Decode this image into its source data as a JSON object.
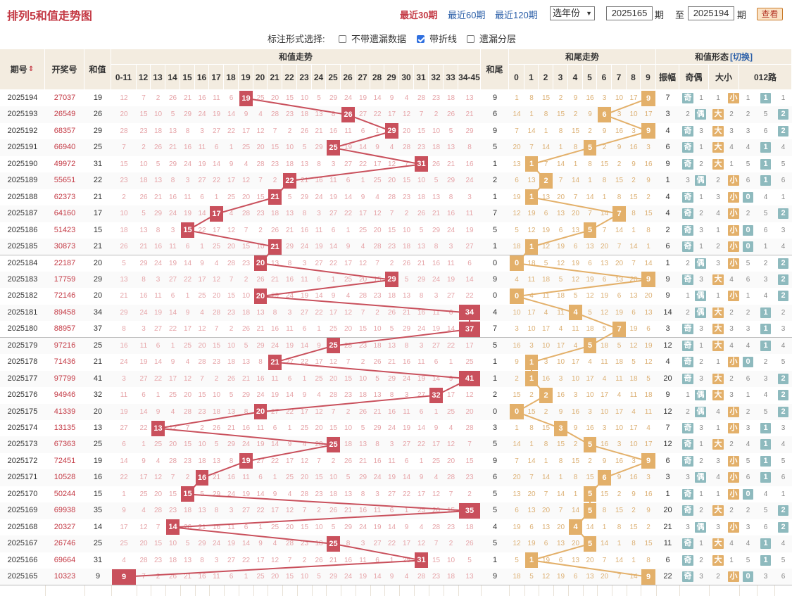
{
  "header": {
    "title": "排列5和值走势图",
    "period_links": [
      "最近30期",
      "最近60期",
      "最近120期"
    ],
    "active_period": "最近30期",
    "year_select": "选年份",
    "from_issue": "2025165",
    "period_unit": "期",
    "to_label": "至",
    "to_issue": "2025194",
    "view_button": "查看"
  },
  "options": {
    "label": "标注形式选择:",
    "items": [
      {
        "label": "不带遗漏数据",
        "checked": false
      },
      {
        "label": "带折线",
        "checked": true
      },
      {
        "label": "遗漏分层",
        "checked": false
      }
    ]
  },
  "columns": {
    "issue": "期号",
    "draw": "开奖号",
    "sum": "和值",
    "sum_trend": "和值走势",
    "sum_tail": "和尾",
    "tail_trend": "和尾走势",
    "form": "和值形态",
    "form_switch": "[切换]",
    "amplitude": "振幅",
    "odd_even": "奇偶",
    "big_small": "大小",
    "road": "012路",
    "sum_buckets": [
      "0-11",
      "12",
      "13",
      "14",
      "15",
      "16",
      "17",
      "18",
      "19",
      "20",
      "21",
      "22",
      "23",
      "24",
      "25",
      "26",
      "27",
      "28",
      "29",
      "30",
      "31",
      "32",
      "33",
      "34-45"
    ],
    "tail_digits": [
      "0",
      "1",
      "2",
      "3",
      "4",
      "5",
      "6",
      "7",
      "8",
      "9"
    ],
    "road_digits": [
      "0",
      "1",
      "2"
    ]
  },
  "labels": {
    "odd": "奇",
    "even": "偶",
    "big": "大",
    "small": "小"
  },
  "colors": {
    "trend_red": "#c9505c",
    "trend_orange": "#e3b06a",
    "header_bg": "#f3ece0",
    "title_red": "#c43a45",
    "link_blue": "#2b5fa8"
  },
  "rows": [
    {
      "issue": "2025194",
      "draw": "27037",
      "sum": 19,
      "tail": 9,
      "amp": 7,
      "oe": "odd",
      "bs": "small",
      "road": 1
    },
    {
      "issue": "2025193",
      "draw": "26549",
      "sum": 26,
      "tail": 6,
      "amp": 3,
      "oe": "even",
      "bs": "big",
      "road": 2
    },
    {
      "issue": "2025192",
      "draw": "68357",
      "sum": 29,
      "tail": 9,
      "amp": 4,
      "oe": "odd",
      "bs": "big",
      "road": 2
    },
    {
      "issue": "2025191",
      "draw": "66940",
      "sum": 25,
      "tail": 5,
      "amp": 6,
      "oe": "odd",
      "bs": "big",
      "road": 1
    },
    {
      "issue": "2025190",
      "draw": "49972",
      "sum": 31,
      "tail": 1,
      "amp": 9,
      "oe": "odd",
      "bs": "big",
      "road": 1
    },
    {
      "issue": "2025189",
      "draw": "55651",
      "sum": 22,
      "tail": 2,
      "amp": 1,
      "oe": "even",
      "bs": "small",
      "road": 1
    },
    {
      "issue": "2025188",
      "draw": "62373",
      "sum": 21,
      "tail": 1,
      "amp": 4,
      "oe": "odd",
      "bs": "small",
      "road": 0
    },
    {
      "issue": "2025187",
      "draw": "64160",
      "sum": 17,
      "tail": 7,
      "amp": 4,
      "oe": "odd",
      "bs": "small",
      "road": 2
    },
    {
      "issue": "2025186",
      "draw": "51423",
      "sum": 15,
      "tail": 5,
      "amp": 2,
      "oe": "odd",
      "bs": "small",
      "road": 0
    },
    {
      "issue": "2025185",
      "draw": "30873",
      "sum": 21,
      "tail": 1,
      "amp": 6,
      "oe": "odd",
      "bs": "small",
      "road": 0
    },
    {
      "issue": "2025184",
      "draw": "22187",
      "sum": 20,
      "tail": 0,
      "amp": 1,
      "oe": "even",
      "bs": "small",
      "road": 2
    },
    {
      "issue": "2025183",
      "draw": "17759",
      "sum": 29,
      "tail": 9,
      "amp": 9,
      "oe": "odd",
      "bs": "big",
      "road": 2
    },
    {
      "issue": "2025182",
      "draw": "72146",
      "sum": 20,
      "tail": 0,
      "amp": 9,
      "oe": "even",
      "bs": "small",
      "road": 2
    },
    {
      "issue": "2025181",
      "draw": "89458",
      "sum": 34,
      "tail": 4,
      "amp": 14,
      "oe": "even",
      "bs": "big",
      "road": 1
    },
    {
      "issue": "2025180",
      "draw": "88957",
      "sum": 37,
      "tail": 7,
      "amp": 3,
      "oe": "odd",
      "bs": "big",
      "road": 1
    },
    {
      "issue": "2025179",
      "draw": "97216",
      "sum": 25,
      "tail": 5,
      "amp": 12,
      "oe": "odd",
      "bs": "big",
      "road": 1
    },
    {
      "issue": "2025178",
      "draw": "71436",
      "sum": 21,
      "tail": 1,
      "amp": 4,
      "oe": "odd",
      "bs": "small",
      "road": 0
    },
    {
      "issue": "2025177",
      "draw": "97799",
      "sum": 41,
      "tail": 1,
      "amp": 20,
      "oe": "odd",
      "bs": "big",
      "road": 2
    },
    {
      "issue": "2025176",
      "draw": "94946",
      "sum": 32,
      "tail": 2,
      "amp": 9,
      "oe": "even",
      "bs": "big",
      "road": 2
    },
    {
      "issue": "2025175",
      "draw": "41339",
      "sum": 20,
      "tail": 0,
      "amp": 12,
      "oe": "even",
      "bs": "small",
      "road": 2
    },
    {
      "issue": "2025174",
      "draw": "13135",
      "sum": 13,
      "tail": 3,
      "amp": 7,
      "oe": "odd",
      "bs": "small",
      "road": 1
    },
    {
      "issue": "2025173",
      "draw": "67363",
      "sum": 25,
      "tail": 5,
      "amp": 12,
      "oe": "odd",
      "bs": "big",
      "road": 1
    },
    {
      "issue": "2025172",
      "draw": "72451",
      "sum": 19,
      "tail": 9,
      "amp": 6,
      "oe": "odd",
      "bs": "small",
      "road": 1
    },
    {
      "issue": "2025171",
      "draw": "10528",
      "sum": 16,
      "tail": 6,
      "amp": 3,
      "oe": "even",
      "bs": "small",
      "road": 1
    },
    {
      "issue": "2025170",
      "draw": "50244",
      "sum": 15,
      "tail": 5,
      "amp": 1,
      "oe": "odd",
      "bs": "small",
      "road": 0
    },
    {
      "issue": "2025169",
      "draw": "69938",
      "sum": 35,
      "tail": 5,
      "amp": 20,
      "oe": "odd",
      "bs": "big",
      "road": 2
    },
    {
      "issue": "2025168",
      "draw": "20327",
      "sum": 14,
      "tail": 4,
      "amp": 21,
      "oe": "even",
      "bs": "small",
      "road": 2
    },
    {
      "issue": "2025167",
      "draw": "26746",
      "sum": 25,
      "tail": 5,
      "amp": 11,
      "oe": "odd",
      "bs": "big",
      "road": 1
    },
    {
      "issue": "2025166",
      "draw": "69664",
      "sum": 31,
      "tail": 1,
      "amp": 6,
      "oe": "odd",
      "bs": "big",
      "road": 1
    },
    {
      "issue": "2025165",
      "draw": "10323",
      "sum": 9,
      "tail": 9,
      "amp": 22,
      "oe": "odd",
      "bs": "small",
      "road": 0
    }
  ]
}
